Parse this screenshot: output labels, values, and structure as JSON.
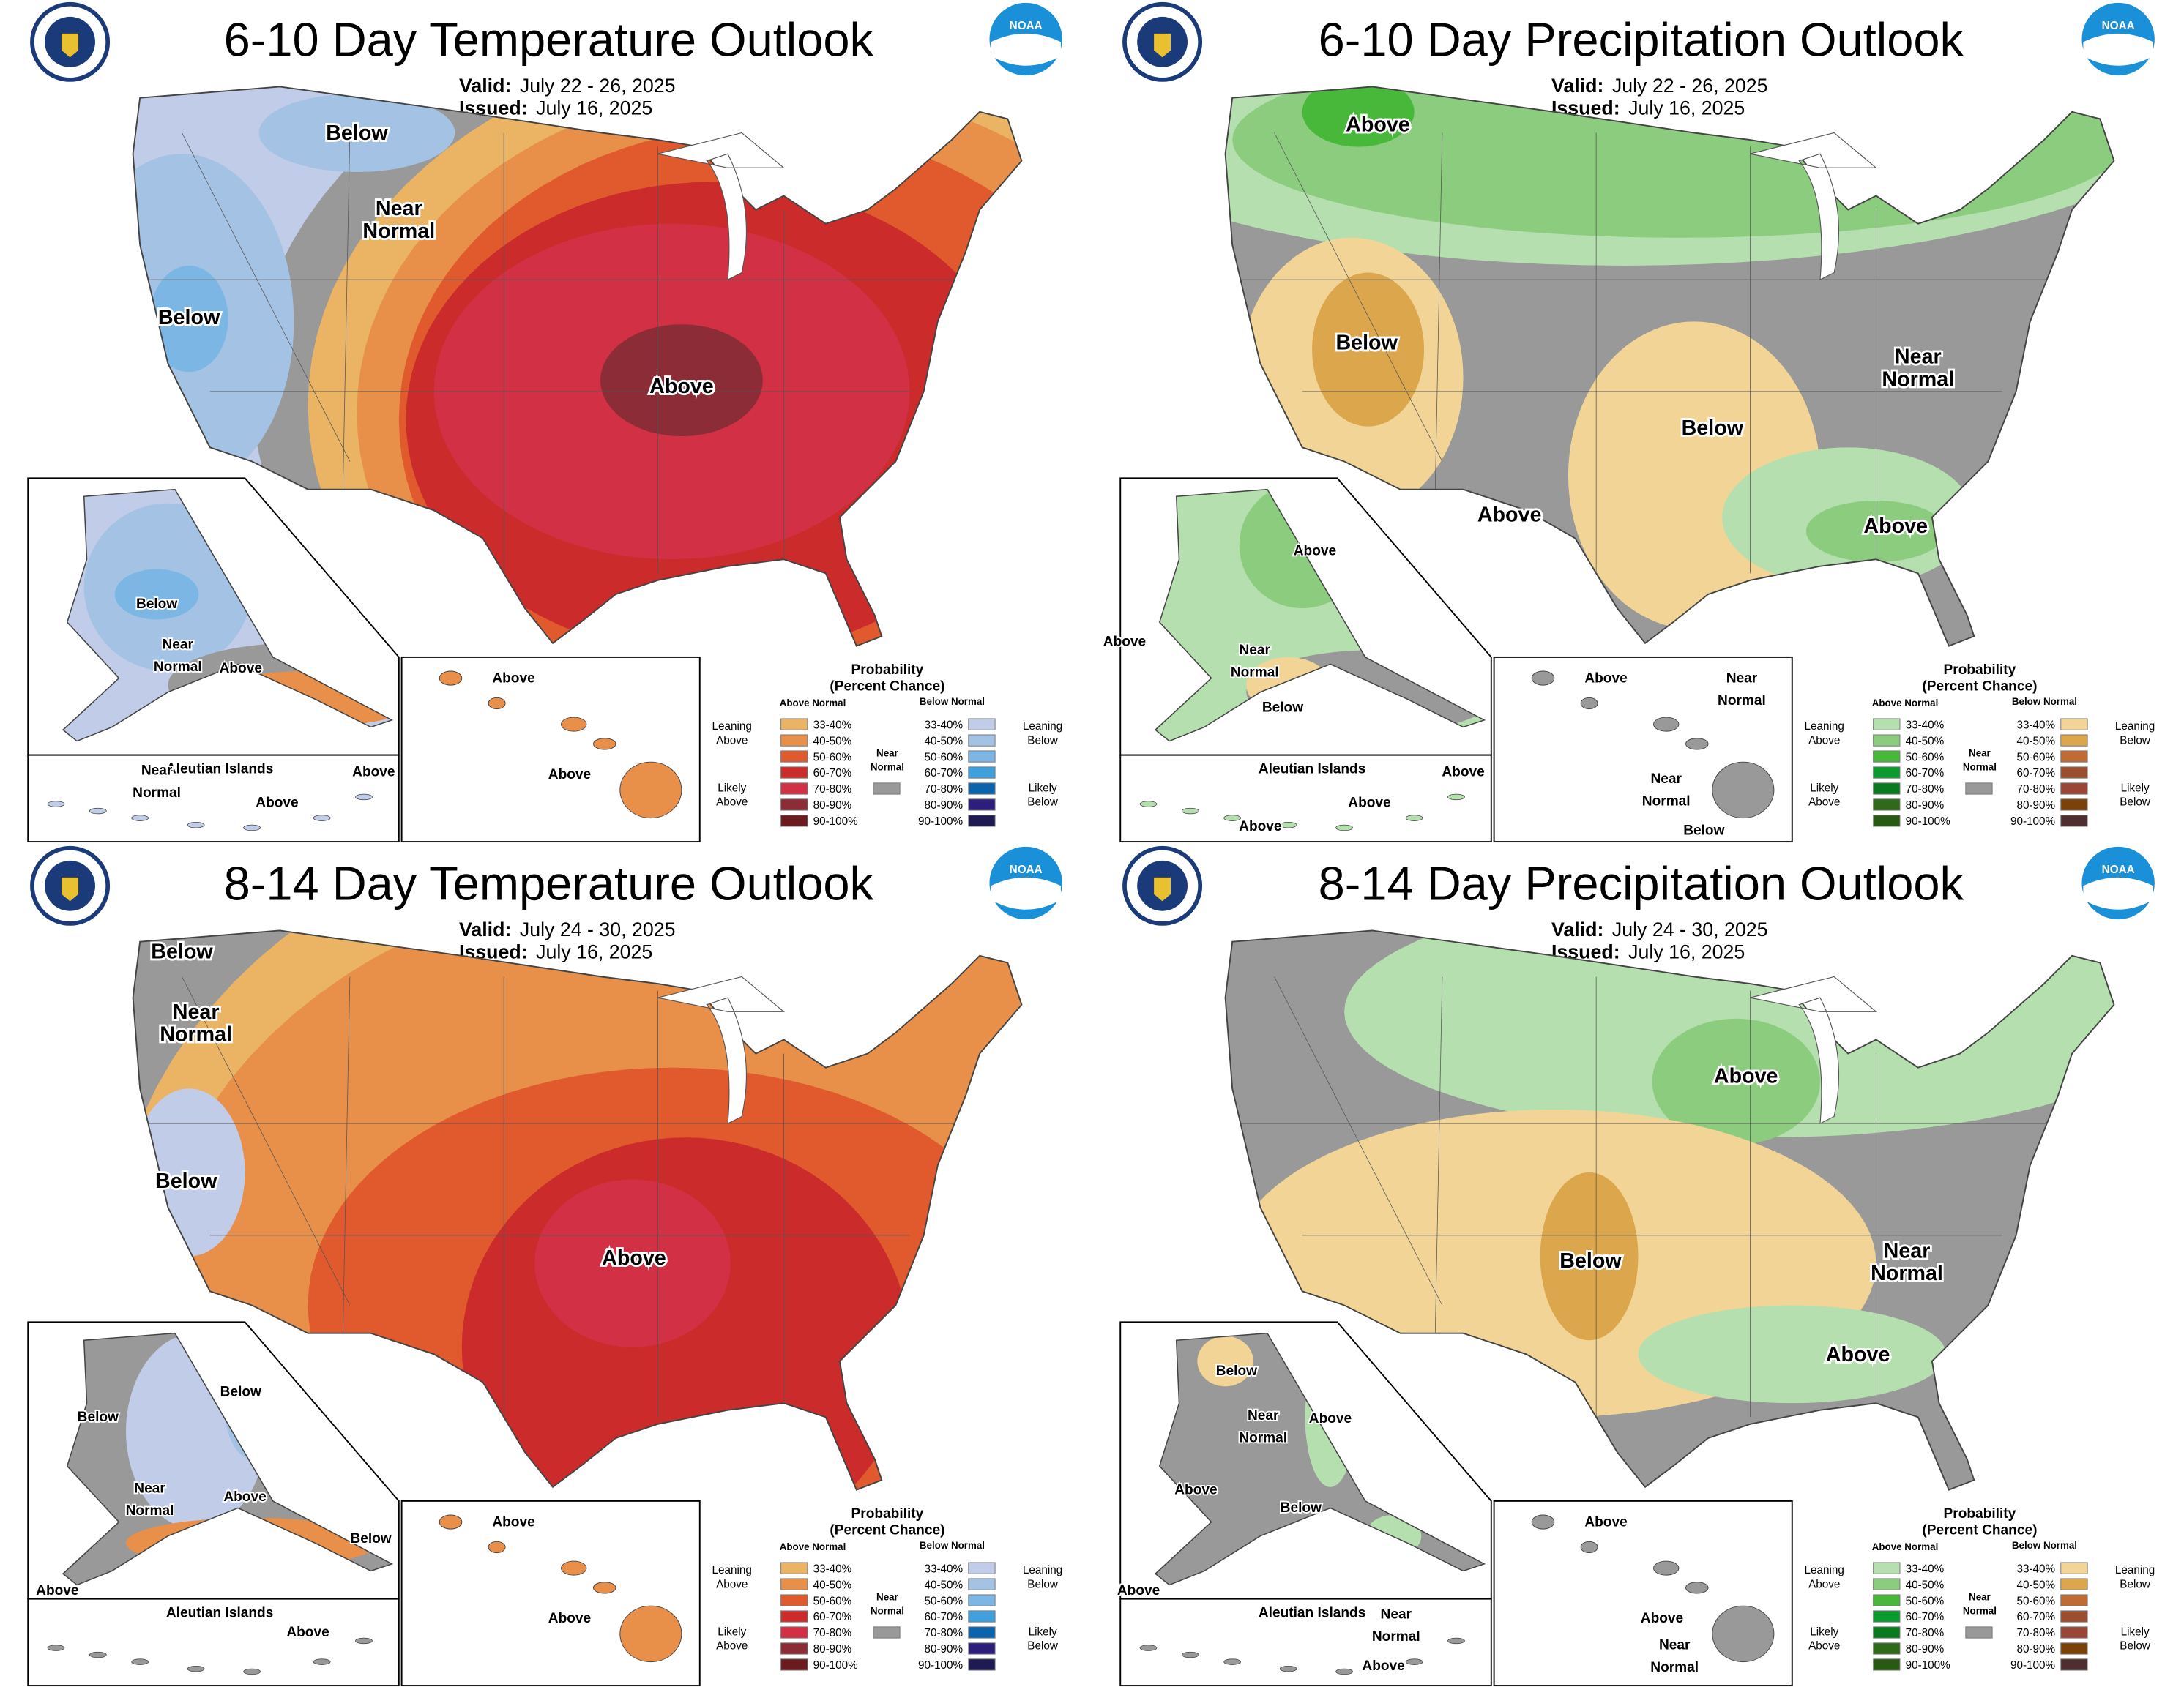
{
  "colors": {
    "near_normal": "#999999",
    "temp_above": [
      "#eab464",
      "#e8904a",
      "#e05a2e",
      "#cc2b2b",
      "#d23044",
      "#8b2c36",
      "#6b1a1f"
    ],
    "temp_below": [
      "#c0cce8",
      "#a4c2e4",
      "#7cb6e4",
      "#3fa0dc",
      "#0b63ab",
      "#2e1e7c",
      "#1e1a52"
    ],
    "precip_above": [
      "#b6dfb0",
      "#8ccc7e",
      "#48b83a",
      "#0a9a2e",
      "#0a7a1e",
      "#2e6a1a",
      "#285a14"
    ],
    "precip_below": [
      "#f2d596",
      "#dba64c",
      "#c06a34",
      "#9a4e2e",
      "#9a4636",
      "#7a4208",
      "#4e2e2e"
    ]
  },
  "legend": {
    "title_1": "Probability",
    "title_2": "(Percent Chance)",
    "above_header": "Above Normal",
    "below_header": "Below Normal",
    "ranges": [
      "33-40%",
      "40-50%",
      "50-60%",
      "60-70%",
      "70-80%",
      "80-90%",
      "90-100%"
    ],
    "leaning_above": [
      "Leaning",
      "Above"
    ],
    "likely_above": [
      "Likely",
      "Above"
    ],
    "leaning_below": [
      "Leaning",
      "Below"
    ],
    "likely_below": [
      "Likely",
      "Below"
    ],
    "near_normal": [
      "Near",
      "Normal"
    ]
  },
  "logos": {
    "left": "seal-icon",
    "right_text": "NOAA"
  },
  "panels": [
    {
      "kind": "temp",
      "title": "6-10 Day Temperature Outlook",
      "valid_label": "Valid:",
      "valid": "July 22 - 26, 2025",
      "issued_label": "Issued:",
      "issued": "July 16, 2025",
      "conus_labels": [
        "Below",
        "Near|Normal",
        "Below",
        "Above"
      ],
      "alaska_labels": [
        "Below",
        "Near|Normal",
        "Above"
      ],
      "aleutian_title": "Aleutian Islands",
      "aleutian_labels": [
        "Near|Normal",
        "Above",
        "Above"
      ],
      "hawaii_labels": [
        "Above",
        "Above"
      ]
    },
    {
      "kind": "precip",
      "title": "6-10 Day Precipitation Outlook",
      "valid_label": "Valid:",
      "valid": "July 22 - 26, 2025",
      "issued_label": "Issued:",
      "issued": "July 16, 2025",
      "conus_labels": [
        "Above",
        "Below",
        "Near|Normal",
        "Below",
        "Above",
        "Above"
      ],
      "alaska_labels": [
        "Above",
        "Above",
        "Near|Normal",
        "Below"
      ],
      "aleutian_title": "Aleutian Islands",
      "aleutian_labels": [
        "Above",
        "Above",
        "Above"
      ],
      "hawaii_labels": [
        "Above",
        "Near|Normal",
        "Near|Normal",
        "Below"
      ]
    },
    {
      "kind": "temp",
      "title": "8-14 Day Temperature Outlook",
      "valid_label": "Valid:",
      "valid": "July 24 - 30, 2025",
      "issued_label": "Issued:",
      "issued": "July 16, 2025",
      "conus_labels": [
        "Below",
        "Near|Normal",
        "Below",
        "Above"
      ],
      "alaska_labels": [
        "Below",
        "Below",
        "Near|Normal",
        "Above",
        "Below",
        "Above"
      ],
      "aleutian_title": "Aleutian Islands",
      "aleutian_labels": [
        "Above"
      ],
      "hawaii_labels": [
        "Above",
        "Above"
      ]
    },
    {
      "kind": "precip",
      "title": "8-14 Day Precipitation Outlook",
      "valid_label": "Valid:",
      "valid": "July 24 - 30, 2025",
      "issued_label": "Issued:",
      "issued": "July 16, 2025",
      "conus_labels": [
        "Above",
        "Below",
        "Near|Normal",
        "Above"
      ],
      "alaska_labels": [
        "Below",
        "Above",
        "Near|Normal",
        "Above",
        "Below",
        "Above"
      ],
      "aleutian_title": "Aleutian Islands",
      "aleutian_labels": [
        "Near|Normal",
        "Above"
      ],
      "hawaii_labels": [
        "Above",
        "Above",
        "Near|Normal"
      ]
    }
  ]
}
